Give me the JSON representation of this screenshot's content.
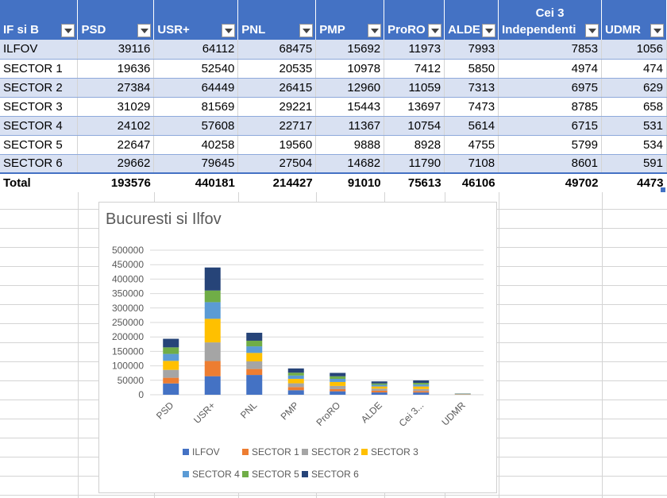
{
  "table": {
    "headers": [
      "IF si B",
      "PSD",
      "USR+",
      "PNL",
      "PMP",
      "ProRO",
      "ALDE",
      [
        "Cei 3",
        "Independenti"
      ],
      "UDMR"
    ],
    "rows": [
      [
        "ILFOV",
        "39116",
        "64112",
        "68475",
        "15692",
        "11973",
        "7993",
        "7853",
        "1056"
      ],
      [
        "SECTOR 1",
        "19636",
        "52540",
        "20535",
        "10978",
        "7412",
        "5850",
        "4974",
        "474"
      ],
      [
        "SECTOR 2",
        "27384",
        "64449",
        "26415",
        "12960",
        "11059",
        "7313",
        "6975",
        "629"
      ],
      [
        "SECTOR 3",
        "31029",
        "81569",
        "29221",
        "15443",
        "13697",
        "7473",
        "8785",
        "658"
      ],
      [
        "SECTOR 4",
        "24102",
        "57608",
        "22717",
        "11367",
        "10754",
        "5614",
        "6715",
        "531"
      ],
      [
        "SECTOR 5",
        "22647",
        "40258",
        "19560",
        "9888",
        "8928",
        "4755",
        "5799",
        "534"
      ],
      [
        "SECTOR 6",
        "29662",
        "79645",
        "27504",
        "14682",
        "11790",
        "7108",
        "8601",
        "591"
      ]
    ],
    "total": [
      "Total",
      "193576",
      "440181",
      "214427",
      "91010",
      "75613",
      "46106",
      "49702",
      "4473"
    ]
  },
  "colors": {
    "header_bg": "#4472c4",
    "band_bg": "#d9e1f2"
  },
  "chart_data": {
    "type": "bar",
    "stacked": true,
    "title": "Bucuresti si Ilfov",
    "categories": [
      "PSD",
      "USR+",
      "PNL",
      "PMP",
      "ProRO",
      "ALDE",
      "Cei 3...",
      "UDMR"
    ],
    "ylim": [
      0,
      500000
    ],
    "yticks": [
      "0",
      "50000",
      "100000",
      "150000",
      "200000",
      "250000",
      "300000",
      "350000",
      "400000",
      "450000",
      "500000"
    ],
    "grid": true,
    "legend_position": "bottom",
    "series": [
      {
        "name": "ILFOV",
        "color": "#4472c4",
        "values": [
          39116,
          64112,
          68475,
          15692,
          11973,
          7993,
          7853,
          1056
        ]
      },
      {
        "name": "SECTOR 1",
        "color": "#ed7d31",
        "values": [
          19636,
          52540,
          20535,
          10978,
          7412,
          5850,
          4974,
          474
        ]
      },
      {
        "name": "SECTOR 2",
        "color": "#a5a5a5",
        "values": [
          27384,
          64449,
          26415,
          12960,
          11059,
          7313,
          6975,
          629
        ]
      },
      {
        "name": "SECTOR 3",
        "color": "#ffc000",
        "values": [
          31029,
          81569,
          29221,
          15443,
          13697,
          7473,
          8785,
          658
        ]
      },
      {
        "name": "SECTOR 4",
        "color": "#5b9bd5",
        "values": [
          24102,
          57608,
          22717,
          11367,
          10754,
          5614,
          6715,
          531
        ]
      },
      {
        "name": "SECTOR 5",
        "color": "#70ad47",
        "values": [
          22647,
          40258,
          19560,
          9888,
          8928,
          4755,
          5799,
          534
        ]
      },
      {
        "name": "SECTOR 6",
        "color": "#264478",
        "values": [
          29662,
          79645,
          27504,
          14682,
          11790,
          7108,
          8601,
          591
        ]
      }
    ]
  }
}
